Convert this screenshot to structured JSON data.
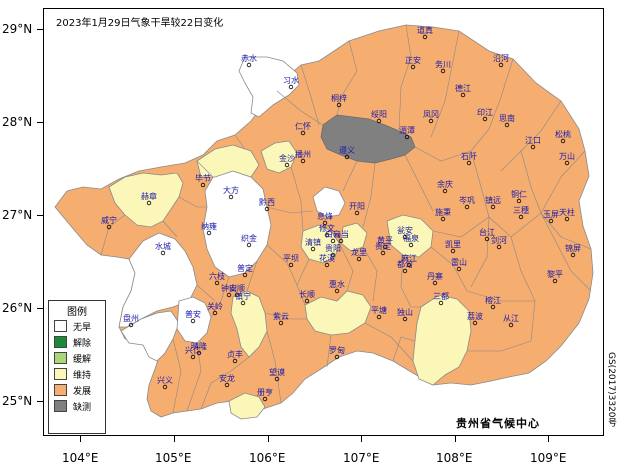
{
  "title": "2023年1月29日气象干旱较22日变化",
  "latitude_labels": [
    "29°N",
    "28°N",
    "27°N",
    "26°N",
    "25°N"
  ],
  "longitude_labels": [
    "104°E",
    "105°E",
    "106°E",
    "107°E",
    "108°E",
    "109°E"
  ],
  "legend": {
    "title": "图例",
    "items": [
      {
        "label": "无旱",
        "color": "#ffffff"
      },
      {
        "label": "解除",
        "color": "#1a8a3a"
      },
      {
        "label": "缓解",
        "color": "#a8d878"
      },
      {
        "label": "维持",
        "color": "#fbf7b8"
      },
      {
        "label": "发展",
        "color": "#f5ad70"
      },
      {
        "label": "缺测",
        "color": "#808080"
      }
    ]
  },
  "agency": "贵州省气候中心",
  "map_code": "GS(2017)3320号",
  "colors": {
    "boundary": "#8a8a8a",
    "station": "#000000",
    "station_label": "#1a1aa8"
  },
  "stations": [
    {
      "name": "道真"
    },
    {
      "name": "正安"
    },
    {
      "name": "务川"
    },
    {
      "name": "沿河"
    },
    {
      "name": "赤水"
    },
    {
      "name": "习水"
    },
    {
      "name": "桐梓"
    },
    {
      "name": "绥阳"
    },
    {
      "name": "德江"
    },
    {
      "name": "印江"
    },
    {
      "name": "松桃"
    },
    {
      "name": "仁怀"
    },
    {
      "name": "遵义"
    },
    {
      "name": "湄潭"
    },
    {
      "name": "凤冈"
    },
    {
      "name": "思南"
    },
    {
      "name": "江口"
    },
    {
      "name": "铜仁"
    },
    {
      "name": "金沙"
    },
    {
      "name": "播州"
    },
    {
      "name": "石阡"
    },
    {
      "name": "万山"
    },
    {
      "name": "毕节"
    },
    {
      "name": "大方"
    },
    {
      "name": "黔西"
    },
    {
      "name": "余庆"
    },
    {
      "name": "岑巩"
    },
    {
      "name": "玉屏"
    },
    {
      "name": "赫章"
    },
    {
      "name": "威宁"
    },
    {
      "name": "纳雍"
    },
    {
      "name": "织金"
    },
    {
      "name": "息烽"
    },
    {
      "name": "开阳"
    },
    {
      "name": "瓮安"
    },
    {
      "name": "黄平"
    },
    {
      "name": "施秉"
    },
    {
      "name": "镇远"
    },
    {
      "name": "三穗"
    },
    {
      "name": "天柱"
    },
    {
      "name": "修文"
    },
    {
      "name": "白云"
    },
    {
      "name": "清镇"
    },
    {
      "name": "乌当"
    },
    {
      "name": "贵阳"
    },
    {
      "name": "龙里"
    },
    {
      "name": "贵定"
    },
    {
      "name": "福泉"
    },
    {
      "name": "麻江"
    },
    {
      "name": "凯里"
    },
    {
      "name": "台江"
    },
    {
      "name": "剑河"
    },
    {
      "name": "锦屏"
    },
    {
      "name": "水城"
    },
    {
      "name": "六枝"
    },
    {
      "name": "普定"
    },
    {
      "name": "安顺"
    },
    {
      "name": "平坝"
    },
    {
      "name": "花溪"
    },
    {
      "name": "都匀"
    },
    {
      "name": "丹寨"
    },
    {
      "name": "雷山"
    },
    {
      "name": "榕江"
    },
    {
      "name": "黎平"
    },
    {
      "name": "钟山"
    },
    {
      "name": "盘州"
    },
    {
      "name": "镇宁"
    },
    {
      "name": "关岭"
    },
    {
      "name": "紫云"
    },
    {
      "name": "长顺"
    },
    {
      "name": "惠水"
    },
    {
      "name": "平塘"
    },
    {
      "name": "独山"
    },
    {
      "name": "三都"
    },
    {
      "name": "从江"
    },
    {
      "name": "普安"
    },
    {
      "name": "晴隆"
    },
    {
      "name": "兴仁"
    },
    {
      "name": "贞丰"
    },
    {
      "name": "望谟"
    },
    {
      "name": "罗甸"
    },
    {
      "name": "荔波"
    },
    {
      "name": "兴义"
    },
    {
      "name": "安龙"
    },
    {
      "name": "册亨"
    }
  ]
}
